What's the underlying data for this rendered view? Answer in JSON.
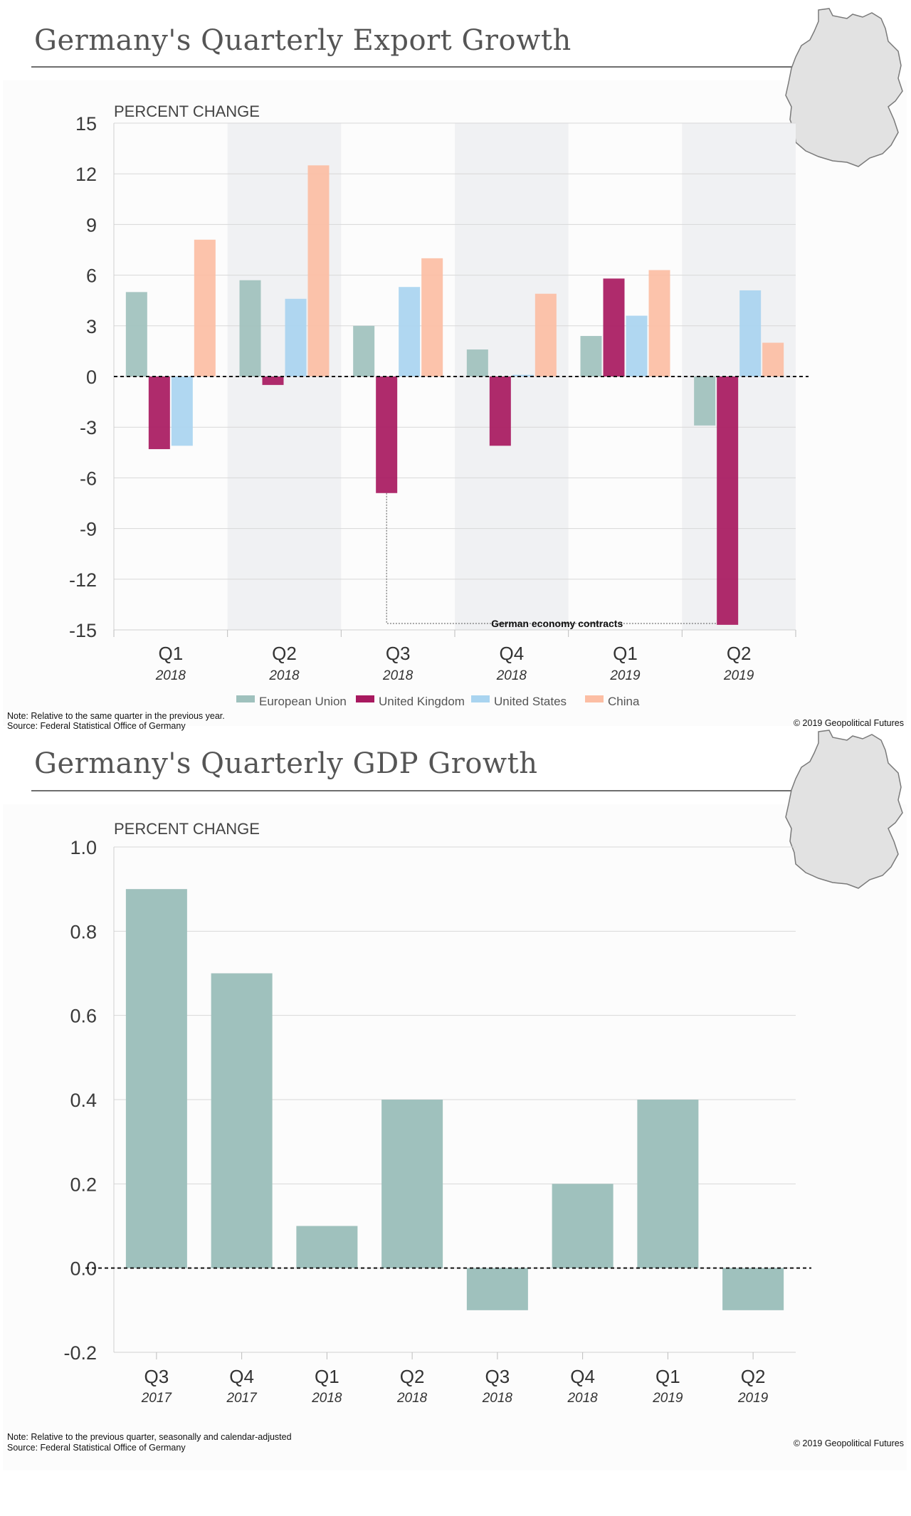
{
  "export_chart": {
    "title": "Germany's Quarterly Export Growth",
    "note": "Note: Relative to the same quarter in the previous year.",
    "source": "Source: Federal Statistical Office of Germany",
    "copyright": "© 2019 Geopolitical Futures",
    "annotation": "German economy contracts",
    "map_icon": "germany-map-icon"
  },
  "gdp_chart": {
    "title": "Germany's Quarterly GDP Growth",
    "note": "Note: Relative to the previous quarter, seasonally and calendar-adjusted",
    "source": "Source: Federal Statistical Office of Germany",
    "copyright": "© 2019 Geopolitical Futures",
    "map_icon": "germany-map-icon"
  },
  "chart_data": [
    {
      "type": "bar",
      "title": "Germany's Quarterly Export Growth",
      "ylabel": "PERCENT CHANGE",
      "xlabel": "",
      "ylim": [
        -15,
        15
      ],
      "yticks": [
        15,
        12,
        9,
        6,
        3,
        0,
        -3,
        -6,
        -9,
        -12,
        -15
      ],
      "categories": [
        "Q1",
        "Q2",
        "Q3",
        "Q4",
        "Q1",
        "Q2"
      ],
      "category_years": [
        "2018",
        "2018",
        "2018",
        "2018",
        "2019",
        "2019"
      ],
      "grid": true,
      "legend_position": "bottom",
      "series": [
        {
          "name": "European Union",
          "color": "#9fc1bd",
          "values": [
            5.0,
            5.7,
            3.0,
            1.6,
            2.4,
            -2.9
          ]
        },
        {
          "name": "United Kingdom",
          "color": "#a8195f",
          "values": [
            -4.3,
            -0.5,
            -6.9,
            -4.1,
            5.8,
            -14.7
          ]
        },
        {
          "name": "United States",
          "color": "#a9d4f0",
          "values": [
            -4.1,
            4.6,
            5.3,
            0.1,
            3.6,
            5.1
          ]
        },
        {
          "name": "China",
          "color": "#fcbea4",
          "values": [
            8.1,
            12.5,
            7.0,
            4.9,
            6.3,
            2.0
          ]
        }
      ]
    },
    {
      "type": "bar",
      "title": "Germany's Quarterly GDP Growth",
      "ylabel": "PERCENT CHANGE",
      "xlabel": "",
      "ylim": [
        -0.2,
        1.0
      ],
      "yticks": [
        "1.0",
        "0.8",
        "0.6",
        "0.4",
        "0.2",
        "0.0",
        "-0.2"
      ],
      "categories": [
        "Q3",
        "Q4",
        "Q1",
        "Q2",
        "Q3",
        "Q4",
        "Q1",
        "Q2"
      ],
      "category_years": [
        "2017",
        "2017",
        "2018",
        "2018",
        "2018",
        "2018",
        "2019",
        "2019"
      ],
      "grid": true,
      "series": [
        {
          "color": "#9fc1bd",
          "values": [
            0.9,
            0.7,
            0.1,
            0.4,
            -0.1,
            0.2,
            0.4,
            -0.1
          ]
        }
      ]
    }
  ]
}
